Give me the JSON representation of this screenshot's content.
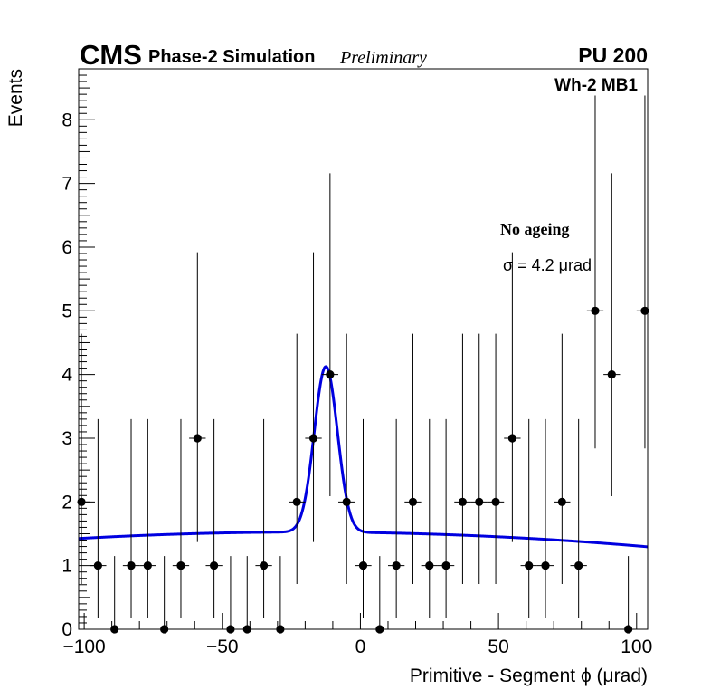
{
  "header": {
    "experiment": "CMS",
    "subtitle": "Phase-2 Simulation",
    "status": "Preliminary",
    "pileup": "PU 200"
  },
  "labels": {
    "chamber": "Wh-2 MB1",
    "condition": "No ageing",
    "sigma": "σ = 4.2  μrad"
  },
  "chart_data": {
    "type": "scatter",
    "xlabel": "Primitive - Segment ϕ (μrad)",
    "ylabel": "Events",
    "xlim": [
      -102,
      104
    ],
    "ylim": [
      0,
      8.8
    ],
    "x_ticks": [
      -100,
      -50,
      0,
      50,
      100
    ],
    "x_tick_labels": [
      "−100",
      "−50",
      "0",
      "50",
      "100"
    ],
    "y_ticks": [
      0,
      1,
      2,
      3,
      4,
      5,
      6,
      7,
      8
    ],
    "y_tick_labels": [
      "0",
      "1",
      "2",
      "3",
      "4",
      "5",
      "6",
      "7",
      "8"
    ],
    "bin_width": 6,
    "points": {
      "x": [
        -101,
        -95,
        -89,
        -83,
        -77,
        -71,
        -65,
        -59,
        -53,
        -47,
        -41,
        -35,
        -29,
        -23,
        -17,
        -11,
        -5,
        1,
        7,
        13,
        19,
        25,
        31,
        37,
        43,
        49,
        55,
        61,
        67,
        73,
        79,
        85,
        91,
        97,
        103
      ],
      "y": [
        2,
        1,
        0,
        1,
        1,
        0,
        1,
        3,
        1,
        0,
        0,
        1,
        0,
        2,
        3,
        4,
        2,
        1,
        0,
        1,
        2,
        1,
        1,
        2,
        2,
        2,
        3,
        1,
        1,
        2,
        1,
        5,
        4,
        0,
        5
      ],
      "err_low": [
        1.29,
        0.83,
        0,
        0.83,
        0.83,
        0,
        0.83,
        1.63,
        0.83,
        0,
        0,
        0.83,
        0,
        1.29,
        1.63,
        1.91,
        1.29,
        0.83,
        0,
        0.83,
        1.29,
        0.83,
        0.83,
        1.29,
        1.29,
        1.29,
        1.63,
        0.83,
        0.83,
        1.29,
        0.83,
        2.16,
        1.91,
        0,
        2.16
      ],
      "err_high": [
        2.64,
        2.3,
        1.15,
        2.3,
        2.3,
        1.15,
        2.3,
        2.92,
        2.3,
        1.15,
        1.15,
        2.3,
        1.15,
        2.64,
        2.92,
        3.16,
        2.64,
        2.3,
        1.15,
        2.3,
        2.64,
        2.3,
        2.3,
        2.64,
        2.64,
        2.64,
        2.92,
        2.3,
        2.3,
        2.64,
        2.3,
        3.38,
        3.16,
        1.15,
        3.38
      ]
    },
    "fit": {
      "color": "#0000e0",
      "peak_mean": -12.5,
      "peak_sigma": 4.2,
      "peak_amplitude": 2.6,
      "background": {
        "intercept": 1.52,
        "slope": -0.0006,
        "curvature": -1.5e-05
      }
    }
  }
}
